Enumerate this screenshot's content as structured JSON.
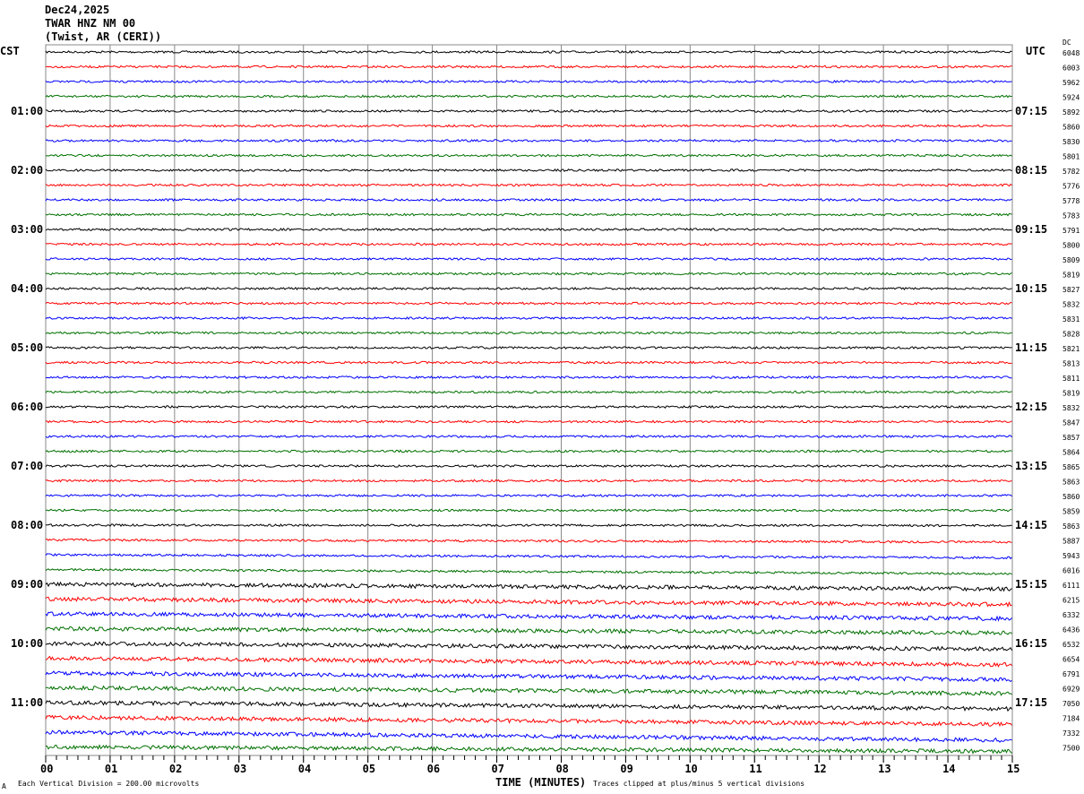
{
  "header": {
    "date": "Dec24,2025",
    "station": "TWAR HNZ NM 00",
    "location": "(Twist, AR (CERI))"
  },
  "left_label": "CST",
  "right_label": "UTC",
  "dc_label": "DC",
  "chart_data": {
    "type": "line",
    "title": "",
    "xlabel": "TIME (MINUTES)",
    "xlim": [
      0,
      15
    ],
    "x_ticks": [
      "00",
      "01",
      "02",
      "03",
      "04",
      "05",
      "06",
      "07",
      "08",
      "09",
      "10",
      "11",
      "12",
      "13",
      "14",
      "15"
    ],
    "grid": true,
    "trace_count": 48,
    "trace_minutes": 15,
    "trace_colors": [
      "#000000",
      "#ff0000",
      "#0000ff",
      "#007000"
    ],
    "cst_labels": [
      "01:00",
      "02:00",
      "03:00",
      "04:00",
      "05:00",
      "06:00",
      "07:00",
      "08:00",
      "09:00",
      "10:00",
      "11:00"
    ],
    "utc_labels": [
      "07:15",
      "08:15",
      "09:15",
      "10:15",
      "11:15",
      "12:15",
      "13:15",
      "14:15",
      "15:15",
      "16:15",
      "17:15"
    ],
    "dc_values": [
      "6048",
      "6003",
      "5962",
      "5924",
      "5892",
      "5860",
      "5830",
      "5801",
      "5782",
      "5776",
      "5778",
      "5783",
      "5791",
      "5800",
      "5809",
      "5819",
      "5827",
      "5832",
      "5831",
      "5828",
      "5821",
      "5813",
      "5811",
      "5819",
      "5832",
      "5847",
      "5857",
      "5864",
      "5865",
      "5863",
      "5860",
      "5859",
      "5863",
      "5887",
      "5943",
      "6016",
      "6111",
      "6215",
      "6332",
      "6436",
      "6532",
      "6654",
      "6791",
      "6929",
      "7050",
      "7184",
      "7332",
      "7500"
    ]
  },
  "footer": {
    "scale": "Each Vertical Division =  200.00 microvolts",
    "clip": "Traces clipped at plus/minus 5 vertical divisions",
    "corner": "A"
  }
}
